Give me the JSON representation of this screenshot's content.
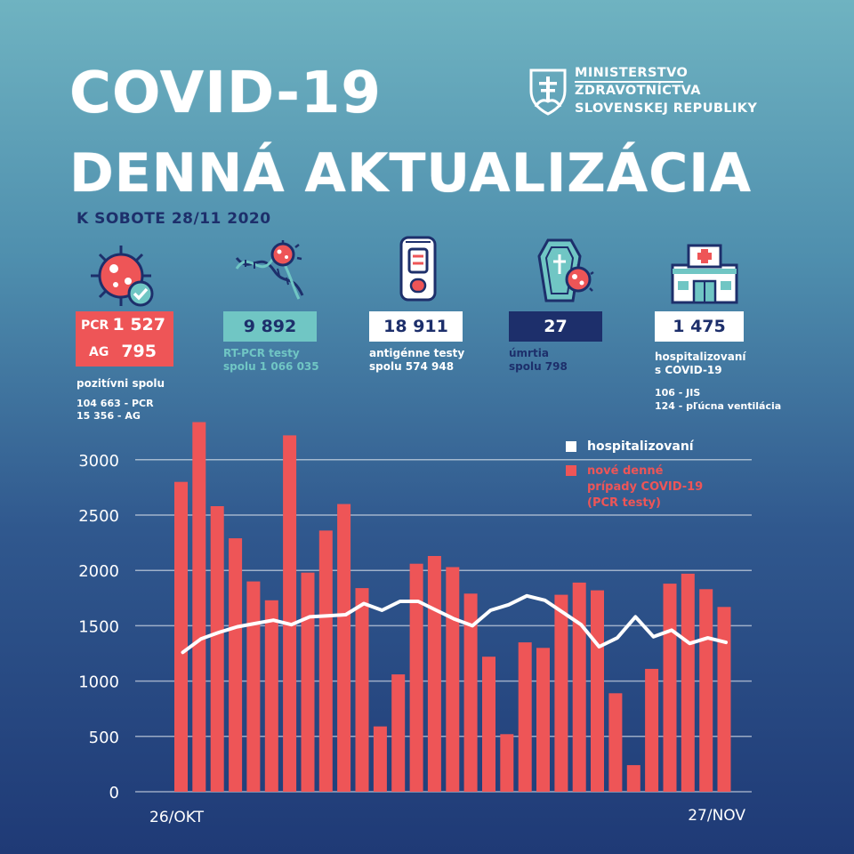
{
  "header": {
    "title_line1": "COVID-19",
    "title_line2": "DENNÁ AKTUALIZÁCIA",
    "date": "K SOBOTE 28/11 2020",
    "ministry_line1": "MINISTERSTVO",
    "ministry_line2": "ZDRAVOTNÍCTVA",
    "ministry_line3": "SLOVENSKEJ REPUBLIKY"
  },
  "stats": {
    "positive": {
      "pcr_label": "PCR",
      "pcr_value": "1 527",
      "ag_label": "AG",
      "ag_value": "795",
      "caption": "pozitívni spolu",
      "total_pcr": "104 663 - PCR",
      "total_ag": "15 356 - AG"
    },
    "rt_pcr": {
      "value": "9 892",
      "caption_line1": "RT-PCR testy",
      "caption_line2": "spolu 1 066 035"
    },
    "antigen": {
      "value": "18 911",
      "caption_line1": "antigénne testy",
      "caption_line2": "spolu 574 948"
    },
    "deaths": {
      "value": "27",
      "caption_line1": "úmrtia",
      "caption_line2": "spolu 798"
    },
    "hospitalized": {
      "value": "1 475",
      "caption_line1": "hospitalizovaní",
      "caption_line2": "s COVID-19",
      "icu": "106 - JIS",
      "ventilation": "124 - pľúcna ventilácia"
    }
  },
  "colors": {
    "red": "#ee5557",
    "teal": "#70c6c4",
    "navy": "#1d2f6b",
    "white": "#ffffff"
  },
  "icons": [
    "virus-check-icon",
    "dna-virus-icon",
    "antigen-test-icon",
    "coffin-virus-icon",
    "hospital-icon",
    "slovak-crest-icon"
  ],
  "chart_data": {
    "type": "bar",
    "x_start_label": "26/OKT",
    "x_end_label": "27/NOV",
    "ylim": [
      0,
      3300
    ],
    "yticks": [
      0,
      500,
      1000,
      1500,
      2000,
      2500,
      3000
    ],
    "grid": true,
    "legend_position": "top-right",
    "series": [
      {
        "name": "nové denné prípady COVID-19 (PCR testy)",
        "type": "bar",
        "color": "#ee5557",
        "values": [
          2800,
          3340,
          2580,
          2290,
          1900,
          1730,
          3220,
          1980,
          2360,
          2600,
          1840,
          590,
          1060,
          2060,
          2130,
          2030,
          1790,
          1220,
          520,
          1350,
          1300,
          1780,
          1890,
          1820,
          890,
          240,
          1110,
          1880,
          1970,
          1830,
          1670
        ]
      },
      {
        "name": "hospitalizovaní",
        "type": "line",
        "color": "#ffffff",
        "values": [
          1260,
          1380,
          1440,
          1490,
          1520,
          1550,
          1510,
          1580,
          1590,
          1600,
          1700,
          1640,
          1720,
          1720,
          1640,
          1560,
          1500,
          1640,
          1690,
          1770,
          1730,
          1620,
          1510,
          1310,
          1390,
          1580,
          1400,
          1460,
          1340,
          1390,
          1350
        ]
      }
    ]
  }
}
